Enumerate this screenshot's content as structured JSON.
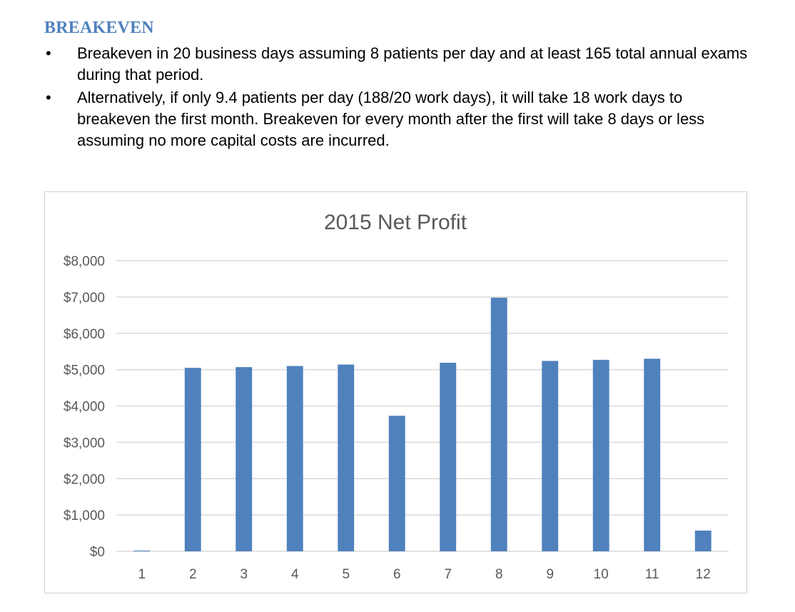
{
  "section": {
    "heading": "BREAKEVEN",
    "bullets": [
      "Breakeven in 20 business days assuming 8 patients per day and at least 165 total annual exams during that period.",
      "Alternatively, if only 9.4 patients per day (188/20 work days), it will take 18 work days to breakeven the first month. Breakeven for every month after the first will take 8 days or less assuming no more capital costs are incurred."
    ]
  },
  "colors": {
    "heading": "#4f81bd",
    "bar": "#4f81bd",
    "grid": "#d9d9d9"
  },
  "chart_data": {
    "type": "bar",
    "title": "2015 Net Profit",
    "xlabel": "",
    "ylabel": "",
    "categories": [
      "1",
      "2",
      "3",
      "4",
      "5",
      "6",
      "7",
      "8",
      "9",
      "10",
      "11",
      "12"
    ],
    "values": [
      20,
      5050,
      5070,
      5100,
      5140,
      3730,
      5190,
      6980,
      5240,
      5270,
      5300,
      570
    ],
    "ylim": [
      0,
      8000
    ],
    "yticks": [
      0,
      1000,
      2000,
      3000,
      4000,
      5000,
      6000,
      7000,
      8000
    ],
    "ytick_labels": [
      "$0",
      "$1,000",
      "$2,000",
      "$3,000",
      "$4,000",
      "$5,000",
      "$6,000",
      "$7,000",
      "$8,000"
    ],
    "grid": true,
    "legend": "none"
  }
}
